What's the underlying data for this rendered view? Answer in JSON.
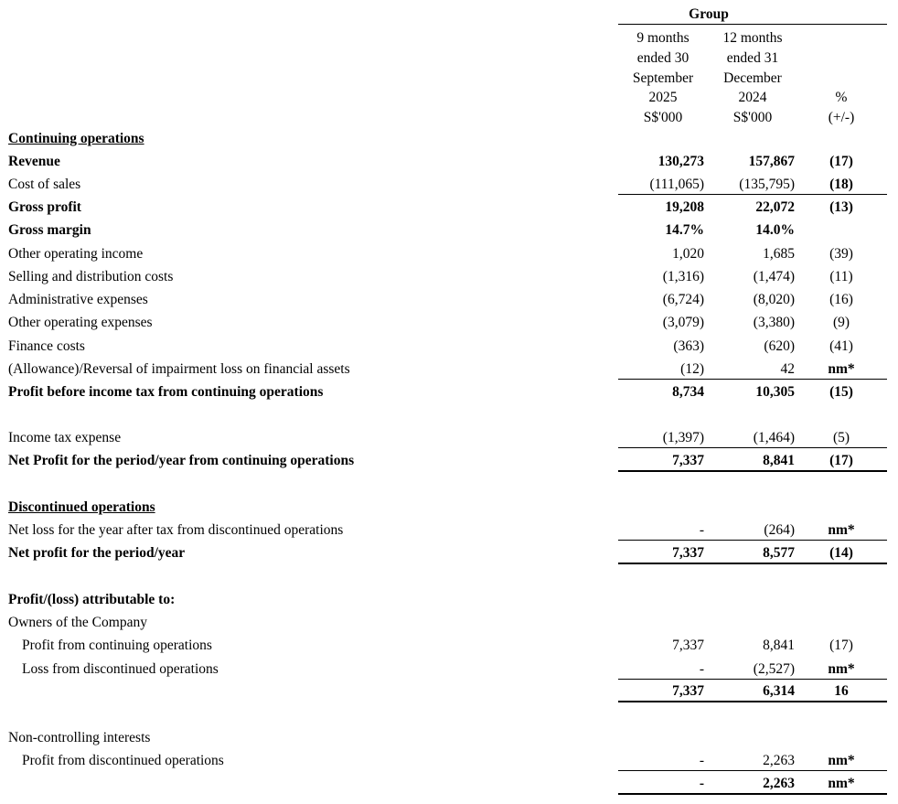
{
  "header": {
    "group": "Group",
    "columns": [
      [
        "9 months",
        "ended 30",
        "September",
        "2025",
        "S$'000"
      ],
      [
        "12 months",
        "ended 31",
        "December",
        "2024",
        "S$'000"
      ],
      [
        "%",
        "(+/-)"
      ]
    ]
  },
  "table": {
    "rows": [
      {
        "label": "Continuing operations"
      },
      {
        "label": "Revenue",
        "values": [
          "130,273",
          "157,867",
          "(17)"
        ]
      },
      {
        "label": "Cost of sales",
        "values": [
          "(111,065)",
          "(135,795)",
          "(18)"
        ]
      },
      {
        "label": "Gross profit",
        "values": [
          "19,208",
          "22,072",
          "(13)"
        ]
      },
      {
        "label": "Gross margin",
        "values": [
          "14.7%",
          "14.0%"
        ]
      },
      {
        "label": "Other operating income",
        "values": [
          "1,020",
          "1,685",
          "(39)"
        ]
      },
      {
        "label": "Selling and distribution costs",
        "values": [
          "(1,316)",
          "(1,474)",
          "(11)"
        ]
      },
      {
        "label": "Administrative expenses",
        "values": [
          "(6,724)",
          "(8,020)",
          "(16)"
        ]
      },
      {
        "label": "Other operating expenses",
        "values": [
          "(3,079)",
          "(3,380)",
          "(9)"
        ]
      },
      {
        "label": "Finance costs",
        "values": [
          "(363)",
          "(620)",
          "(41)"
        ]
      },
      {
        "label": "(Allowance)/Reversal of impairment loss on financial assets",
        "values": [
          "(12)",
          "42",
          "nm*"
        ]
      },
      {
        "label": "Profit before income tax from continuing operations",
        "values": [
          "8,734",
          "10,305",
          "(15)"
        ]
      },
      {
        "label": "Income tax expense",
        "values": [
          "(1,397)",
          "(1,464)",
          "(5)"
        ]
      },
      {
        "label": "Net Profit for the period/year from continuing operations",
        "values": [
          "7,337",
          "8,841",
          "(17)"
        ]
      },
      {
        "label": "Discontinued operations"
      },
      {
        "label": "Net loss for the year after tax from discontinued operations",
        "values": [
          "-",
          "(264)",
          "nm*"
        ]
      },
      {
        "label": "Net profit for the period/year",
        "values": [
          "7,337",
          "8,577",
          "(14)"
        ]
      },
      {
        "label": "Profit/(loss) attributable to:"
      },
      {
        "label": "Owners of the Company"
      },
      {
        "label": "Profit from continuing operations",
        "values": [
          "7,337",
          "8,841",
          "(17)"
        ]
      },
      {
        "label": "Loss from discontinued operations",
        "values": [
          "-",
          "(2,527)",
          "nm*"
        ]
      },
      {
        "values": [
          "7,337",
          "6,314",
          "16"
        ]
      },
      {
        "label": "Non-controlling interests"
      },
      {
        "label": "Profit from discontinued operations",
        "values": [
          "-",
          "2,263",
          "nm*"
        ]
      },
      {
        "values": [
          "-",
          "2,263",
          "nm*"
        ]
      }
    ]
  }
}
